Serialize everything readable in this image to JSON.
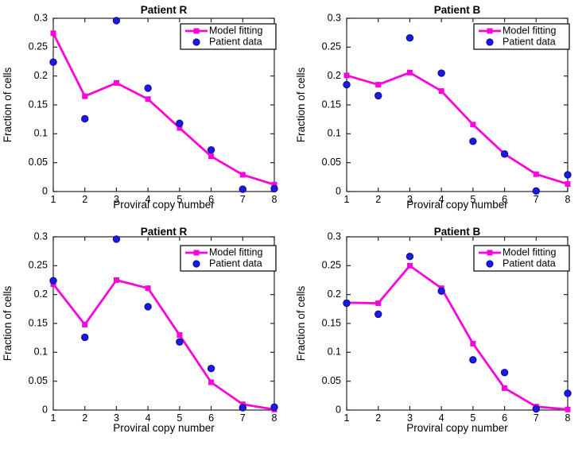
{
  "figure": {
    "background": "#ffffff",
    "colors": {
      "model_line": "#fb04dc",
      "data_point_fill": "#1b1be3",
      "data_point_edge": "#0d0d9e",
      "axis": "#262626",
      "text": "#000000",
      "legend_border": "#000000",
      "legend_background": "#ffffff"
    }
  },
  "chart_data": [
    {
      "type": "line",
      "position": "top-left",
      "title": "Patient R",
      "xlabel": "Proviral copy number",
      "ylabel": "Fraction of cells",
      "xlim": [
        1,
        8
      ],
      "ylim": [
        0,
        0.3
      ],
      "x": [
        1,
        2,
        3,
        4,
        5,
        6,
        7,
        8
      ],
      "xtick_labels": [
        "1",
        "2",
        "3",
        "4",
        "5",
        "6",
        "7",
        "8"
      ],
      "yticks": [
        0,
        0.05,
        0.1,
        0.15,
        0.2,
        0.25,
        0.3
      ],
      "ytick_labels": [
        "0",
        "0.05",
        "0.1",
        "0.15",
        "0.2",
        "0.25",
        "0.3"
      ],
      "grid": false,
      "legend_position": "top-right",
      "series": [
        {
          "name": "Model fitting",
          "type": "line",
          "marker": "square",
          "values": [
            0.274,
            0.165,
            0.188,
            0.16,
            0.11,
            0.061,
            0.029,
            0.012
          ]
        },
        {
          "name": "Patient data",
          "type": "scatter",
          "marker": "circle",
          "values": [
            0.224,
            0.126,
            0.296,
            0.179,
            0.118,
            0.072,
            0.004,
            0.005
          ]
        }
      ]
    },
    {
      "type": "line",
      "position": "top-right",
      "title": "Patient B",
      "xlabel": "Proviral copy number",
      "ylabel": "Fraction of cells",
      "xlim": [
        1,
        8
      ],
      "ylim": [
        0,
        0.3
      ],
      "x": [
        1,
        2,
        3,
        4,
        5,
        6,
        7,
        8
      ],
      "xtick_labels": [
        "1",
        "2",
        "3",
        "4",
        "5",
        "6",
        "7",
        "8"
      ],
      "yticks": [
        0,
        0.05,
        0.1,
        0.15,
        0.2,
        0.25,
        0.3
      ],
      "ytick_labels": [
        "0",
        "0.05",
        "0.1",
        "0.15",
        "0.2",
        "0.25",
        "0.3"
      ],
      "grid": false,
      "legend_position": "top-right",
      "series": [
        {
          "name": "Model fitting",
          "type": "line",
          "marker": "square",
          "values": [
            0.201,
            0.185,
            0.206,
            0.174,
            0.116,
            0.065,
            0.03,
            0.013
          ]
        },
        {
          "name": "Patient data",
          "type": "scatter",
          "marker": "circle",
          "values": [
            0.185,
            0.166,
            0.266,
            0.205,
            0.087,
            0.065,
            0.001,
            0.029
          ]
        }
      ]
    },
    {
      "type": "line",
      "position": "bottom-left",
      "title": "Patient R",
      "xlabel": "Proviral copy number",
      "ylabel": "Fraction of cells",
      "xlim": [
        1,
        8
      ],
      "ylim": [
        0,
        0.3
      ],
      "x": [
        1,
        2,
        3,
        4,
        5,
        6,
        7,
        8
      ],
      "xtick_labels": [
        "1",
        "2",
        "3",
        "4",
        "5",
        "6",
        "7",
        "8"
      ],
      "yticks": [
        0,
        0.05,
        0.1,
        0.15,
        0.2,
        0.25,
        0.3
      ],
      "ytick_labels": [
        "0",
        "0.05",
        "0.1",
        "0.15",
        "0.2",
        "0.25",
        "0.3"
      ],
      "grid": false,
      "legend_position": "top-right",
      "series": [
        {
          "name": "Model fitting",
          "type": "line",
          "marker": "square",
          "values": [
            0.218,
            0.148,
            0.225,
            0.211,
            0.13,
            0.048,
            0.01,
            0.001
          ]
        },
        {
          "name": "Patient data",
          "type": "scatter",
          "marker": "circle",
          "values": [
            0.224,
            0.126,
            0.296,
            0.179,
            0.118,
            0.072,
            0.004,
            0.005
          ]
        }
      ]
    },
    {
      "type": "line",
      "position": "bottom-right",
      "title": "Patient B",
      "xlabel": "Proviral copy number",
      "ylabel": "Fraction of cells",
      "xlim": [
        1,
        8
      ],
      "ylim": [
        0,
        0.3
      ],
      "x": [
        1,
        2,
        3,
        4,
        5,
        6,
        7,
        8
      ],
      "xtick_labels": [
        "1",
        "2",
        "3",
        "4",
        "5",
        "6",
        "7",
        "8"
      ],
      "yticks": [
        0,
        0.05,
        0.1,
        0.15,
        0.2,
        0.25,
        0.3
      ],
      "ytick_labels": [
        "0",
        "0.05",
        "0.1",
        "0.15",
        "0.2",
        "0.25",
        "0.3"
      ],
      "grid": false,
      "legend_position": "top-right",
      "series": [
        {
          "name": "Model fitting",
          "type": "line",
          "marker": "square",
          "values": [
            0.186,
            0.185,
            0.25,
            0.211,
            0.115,
            0.038,
            0.006,
            0.001
          ]
        },
        {
          "name": "Patient data",
          "type": "scatter",
          "marker": "circle",
          "values": [
            0.185,
            0.166,
            0.266,
            0.206,
            0.087,
            0.065,
            0.002,
            0.029
          ]
        }
      ]
    }
  ]
}
